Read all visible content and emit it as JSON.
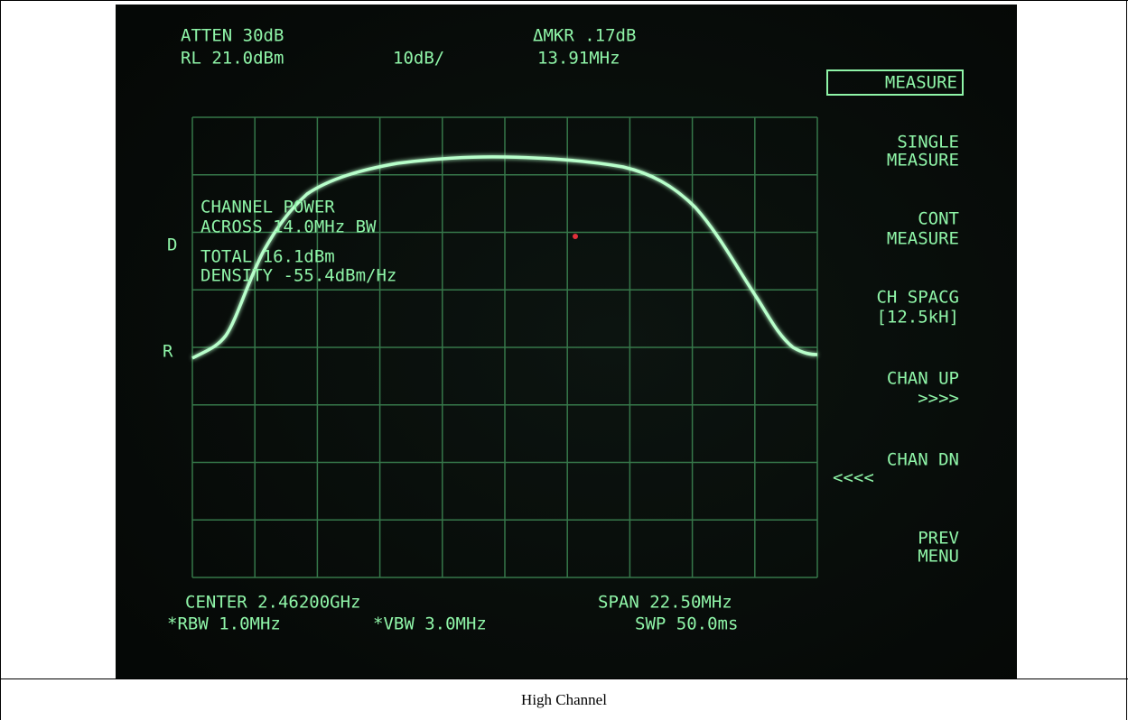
{
  "screen": {
    "header": {
      "atten": "ATTEN 30dB",
      "ref_level": "RL 21.0dBm",
      "scale": "10dB/",
      "marker": "ΔMKR .17dB",
      "marker_freq": "13.91MHz"
    },
    "side_labels": {
      "d": "D",
      "r": "R"
    },
    "readout": [
      "CHANNEL POWER",
      "ACROSS 14.0MHz BW",
      "TOTAL 16.1dBm",
      "DENSITY -55.4dBm/Hz"
    ],
    "softkeys": [
      {
        "lines": [
          "MEASURE"
        ]
      },
      {
        "lines": [
          "SINGLE",
          "MEASURE"
        ]
      },
      {
        "lines": [
          "CONT",
          "MEASURE"
        ]
      },
      {
        "lines": [
          "CH SPACG",
          "[12.5kH]"
        ]
      },
      {
        "lines": [
          "CHAN UP",
          ">>>>"
        ]
      },
      {
        "lines": [
          "CHAN DN",
          "<<<<"
        ]
      },
      {
        "lines": [
          "PREV",
          "MENU"
        ]
      }
    ],
    "footer": {
      "center": "CENTER 2.46200GHz",
      "span": "SPAN 22.50MHz",
      "rbw": "*RBW 1.0MHz",
      "vbw": "*VBW 3.0MHz",
      "sweep": "SWP 50.0ms"
    }
  },
  "caption": "High Channel"
}
